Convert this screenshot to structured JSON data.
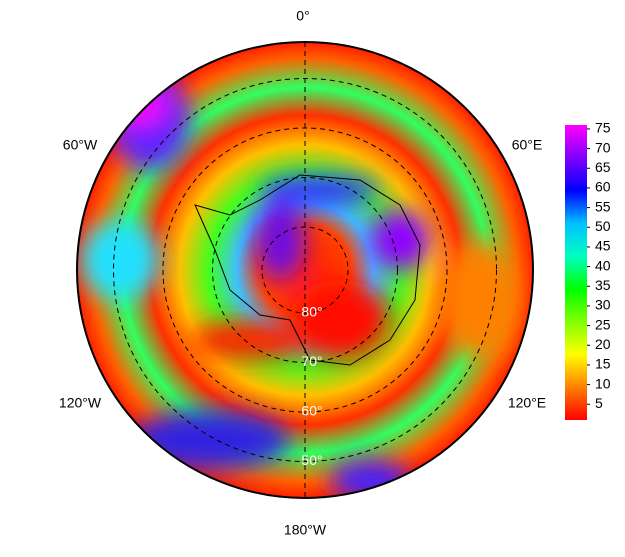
{
  "map": {
    "longitude_labels": [
      "0°",
      "60°E",
      "120°E",
      "180°W",
      "120°W",
      "60°W"
    ],
    "latitude_labels": [
      "80°",
      "70°",
      "60°",
      "50°"
    ]
  },
  "colorbar": {
    "lim": [
      1,
      76
    ],
    "ticks": [
      5,
      10,
      15,
      20,
      25,
      30,
      35,
      40,
      45,
      50,
      55,
      60,
      65,
      70,
      75
    ],
    "colors": [
      "#ff0000",
      "#ff8000",
      "#ffff00",
      "#80ff00",
      "#00ff00",
      "#00ffc0",
      "#00c0ff",
      "#0000ff",
      "#8000ff",
      "#ff00ff"
    ]
  }
}
